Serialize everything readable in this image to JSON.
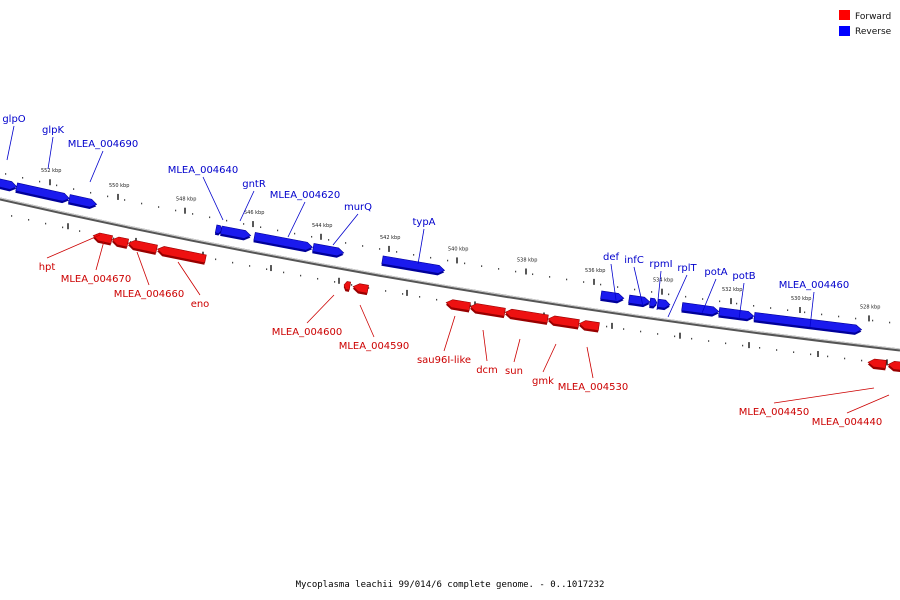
{
  "caption": "Mycoplasma leachii 99/014/6 complete genome. - 0..1017232",
  "legend": [
    {
      "label": "Forward",
      "color": "#ff0000"
    },
    {
      "label": "Reverse",
      "color": "#0000ff"
    }
  ],
  "colors": {
    "forward": "#ee0000",
    "reverse": "#0000ee",
    "backbone": "#888888"
  },
  "ticks": [
    "552 kbp",
    "550 kbp",
    "548 kbp",
    "546 kbp",
    "544 kbp",
    "542 kbp",
    "540 kbp",
    "538 kbp",
    "536 kbp",
    "534 kbp",
    "532 kbp",
    "530 kbp",
    "528 kbp"
  ],
  "reverse_genes": [
    "glpO",
    "glpK",
    "MLEA_004690",
    "MLEA_004640",
    "gntR",
    "MLEA_004620",
    "murQ",
    "typA",
    "def",
    "infC",
    "rpmI",
    "rplT",
    "potA",
    "potB",
    "MLEA_004460"
  ],
  "forward_genes": [
    "hpt",
    "MLEA_004670",
    "MLEA_004660",
    "eno",
    "MLEA_004600",
    "MLEA_004590",
    "sau96I-like",
    "dcm",
    "sun",
    "gmk",
    "MLEA_004530",
    "MLEA_004450",
    "MLEA_004440"
  ]
}
